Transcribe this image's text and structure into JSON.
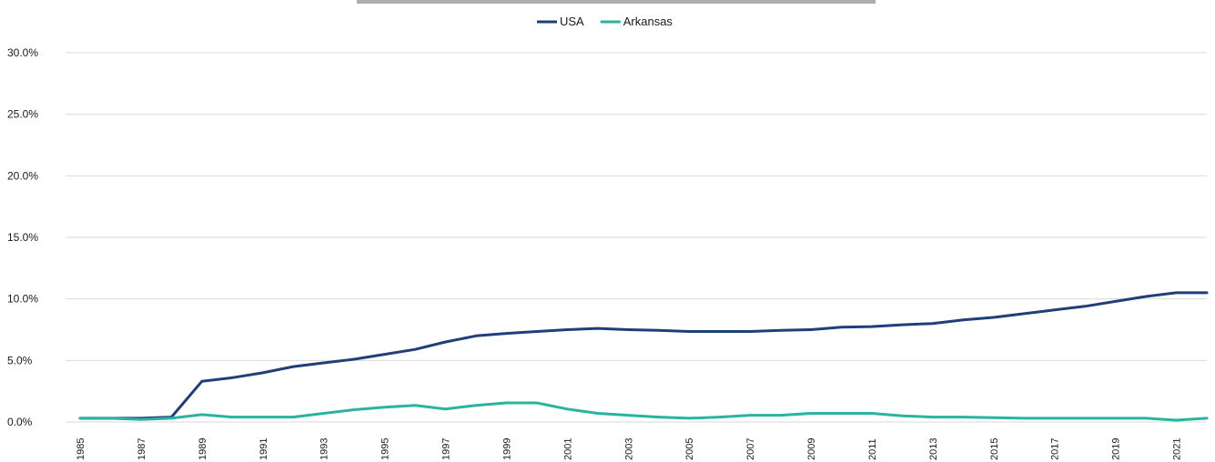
{
  "chart_data": {
    "type": "line",
    "title": "",
    "xlabel": "",
    "ylabel": "",
    "ylim": [
      0,
      30
    ],
    "y_ticks": [
      "0.0%",
      "5.0%",
      "10.0%",
      "15.0%",
      "20.0%",
      "25.0%",
      "30.0%"
    ],
    "x_tick_labels": [
      "1985",
      "1987",
      "1989",
      "1991",
      "1993",
      "1995",
      "1997",
      "1999",
      "2001",
      "2003",
      "2005",
      "2007",
      "2009",
      "2011",
      "2013",
      "2015",
      "2017",
      "2019",
      "2021"
    ],
    "grid": true,
    "legend_position": "top-center",
    "x": [
      1985,
      1986,
      1987,
      1988,
      1989,
      1990,
      1991,
      1992,
      1993,
      1994,
      1995,
      1996,
      1997,
      1998,
      1999,
      2000,
      2001,
      2002,
      2003,
      2004,
      2005,
      2006,
      2007,
      2008,
      2009,
      2010,
      2011,
      2012,
      2013,
      2014,
      2015,
      2016,
      2017,
      2018,
      2019,
      2020,
      2021,
      2022
    ],
    "series": [
      {
        "name": "USA",
        "color": "#1f3e7a",
        "values": [
          0.3,
          0.3,
          0.3,
          0.4,
          3.3,
          3.6,
          4.0,
          4.5,
          4.8,
          5.1,
          5.5,
          5.9,
          6.5,
          7.0,
          7.2,
          7.35,
          7.5,
          7.6,
          7.5,
          7.45,
          7.35,
          7.35,
          7.35,
          7.45,
          7.5,
          7.7,
          7.75,
          7.9,
          8.0,
          8.3,
          8.5,
          8.8,
          9.1,
          9.4,
          9.8,
          10.2,
          10.5,
          10.5
        ]
      },
      {
        "name": "Arkansas",
        "color": "#2ab3a0",
        "values": [
          0.3,
          0.3,
          0.2,
          0.3,
          0.6,
          0.4,
          0.4,
          0.4,
          0.7,
          1.0,
          1.2,
          1.35,
          1.05,
          1.35,
          1.55,
          1.55,
          1.05,
          0.7,
          0.55,
          0.4,
          0.3,
          0.4,
          0.55,
          0.55,
          0.7,
          0.7,
          0.7,
          0.5,
          0.4,
          0.4,
          0.35,
          0.3,
          0.3,
          0.3,
          0.3,
          0.3,
          0.15,
          0.3
        ]
      }
    ]
  }
}
